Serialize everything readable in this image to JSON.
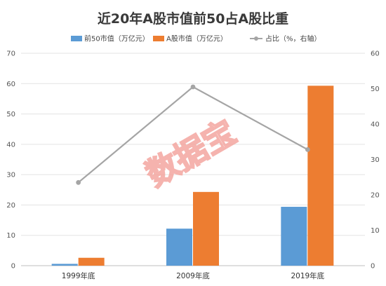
{
  "chart_data": {
    "type": "bar",
    "title": "近20年A股市值前50占A股比重",
    "categories": [
      "1999年底",
      "2009年底",
      "2019年底"
    ],
    "series": [
      {
        "name": "前50市值（万亿元）",
        "type": "bar",
        "axis": "left",
        "color": "#5B9BD5",
        "values": [
          0.6,
          12.2,
          19.4
        ]
      },
      {
        "name": "A股市值（万亿元）",
        "type": "bar",
        "axis": "left",
        "color": "#ED7D31",
        "values": [
          2.6,
          24.3,
          59.3
        ]
      },
      {
        "name": "占比（%，右轴）",
        "type": "line",
        "axis": "right",
        "color": "#A5A5A5",
        "values": [
          23.5,
          50.5,
          32.8
        ]
      }
    ],
    "y_left": {
      "min": 0,
      "max": 70,
      "ticks": [
        0,
        10,
        20,
        30,
        40,
        50,
        60,
        70
      ]
    },
    "y_right": {
      "min": 0,
      "max": 60,
      "ticks": [
        0,
        10,
        20,
        30,
        40,
        50,
        60
      ]
    },
    "legend_position": "top",
    "grid": true
  },
  "watermark": "数据宝"
}
